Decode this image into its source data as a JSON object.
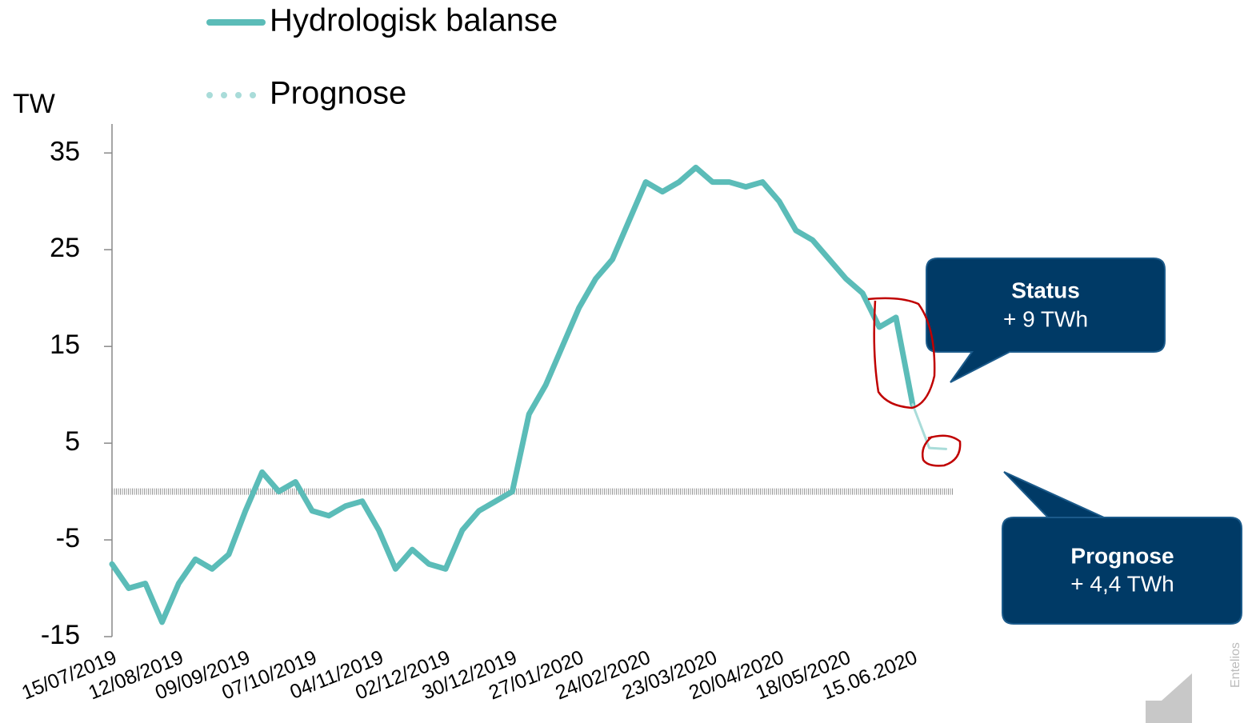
{
  "chart_data": {
    "type": "line",
    "y_axis_label": "TW",
    "categories": [
      "15/07/2019",
      null,
      null,
      null,
      "12/08/2019",
      null,
      null,
      null,
      "09/09/2019",
      null,
      null,
      null,
      "07/10/2019",
      null,
      null,
      null,
      "04/11/2019",
      null,
      null,
      null,
      "02/12/2019",
      null,
      null,
      null,
      "30/12/2019",
      null,
      null,
      null,
      "27/01/2020",
      null,
      null,
      null,
      "24/02/2020",
      null,
      null,
      null,
      "23/03/2020",
      null,
      null,
      null,
      "20/04/2020",
      null,
      null,
      null,
      "18/05/2020",
      null,
      null,
      null,
      "15.06.2020",
      null,
      null
    ],
    "series": [
      {
        "name": "Hydrologisk balanse",
        "color": "#5bbcb8",
        "values": [
          -7.5,
          -10,
          -9.5,
          -13.5,
          -9.5,
          -7,
          -8,
          -6.5,
          -2,
          2,
          0,
          1,
          -2,
          -2.5,
          -1.5,
          -1,
          -4,
          -8,
          -6,
          -7.5,
          -8,
          -4,
          -2,
          -1,
          0,
          8,
          11,
          15,
          19,
          22,
          24,
          28,
          32,
          31,
          32,
          33.5,
          32,
          32,
          31.5,
          32,
          30,
          27,
          26,
          24,
          22,
          20.5,
          17,
          18,
          9,
          null,
          null
        ]
      },
      {
        "name": "Prognose",
        "color": "#a9dcd9",
        "values": [
          null,
          null,
          null,
          null,
          null,
          null,
          null,
          null,
          null,
          null,
          null,
          null,
          null,
          null,
          null,
          null,
          null,
          null,
          null,
          null,
          null,
          null,
          null,
          null,
          null,
          null,
          null,
          null,
          null,
          null,
          null,
          null,
          null,
          null,
          null,
          null,
          null,
          null,
          null,
          null,
          null,
          null,
          null,
          null,
          null,
          null,
          null,
          null,
          9,
          4.5,
          4.4
        ]
      }
    ],
    "ylim": [
      -15,
      38
    ],
    "yticks": [
      -15,
      -5,
      5,
      15,
      25,
      35
    ],
    "annotations": [
      {
        "title": "Status",
        "text": "+ 9 TWh"
      },
      {
        "title": "Prognose",
        "text": "+ 4,4 TWh"
      }
    ],
    "watermark": "Entelios"
  }
}
